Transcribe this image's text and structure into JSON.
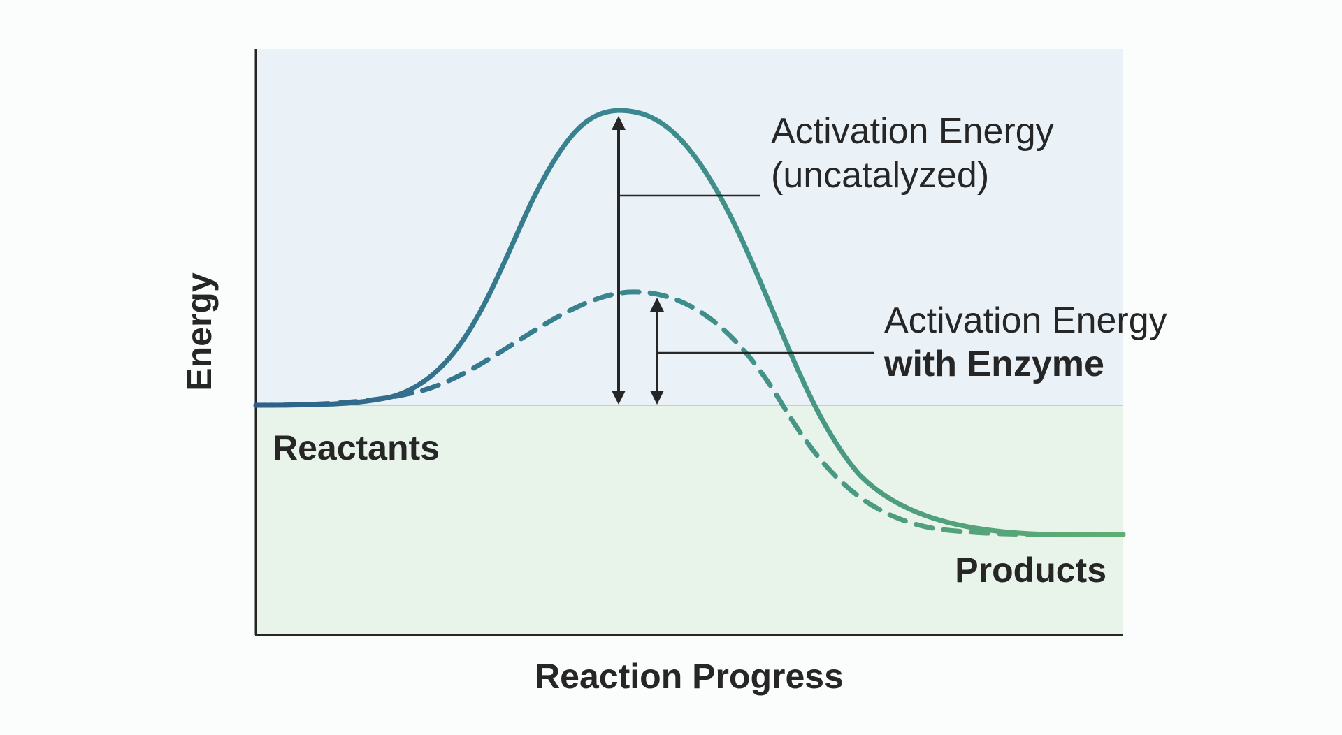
{
  "diagram": {
    "xlabel": "Reaction Progress",
    "ylabel": "Energy",
    "reactants_label": "Reactants",
    "products_label": "Products",
    "uncatalyzed_label_line1": "Activation Energy",
    "uncatalyzed_label_line2": "(uncatalyzed)",
    "enzyme_label_line1": "Activation Energy",
    "enzyme_label_line2": "with Enzyme"
  },
  "colors": {
    "upper_region": "#eaf2f8",
    "lower_region": "#e8f3ea",
    "curve_start": "#2e5f8a",
    "curve_mid": "#3b8a8f",
    "curve_end": "#5fae72",
    "axis": "#262626",
    "reactant_level_line": "#c4cdd3"
  }
}
